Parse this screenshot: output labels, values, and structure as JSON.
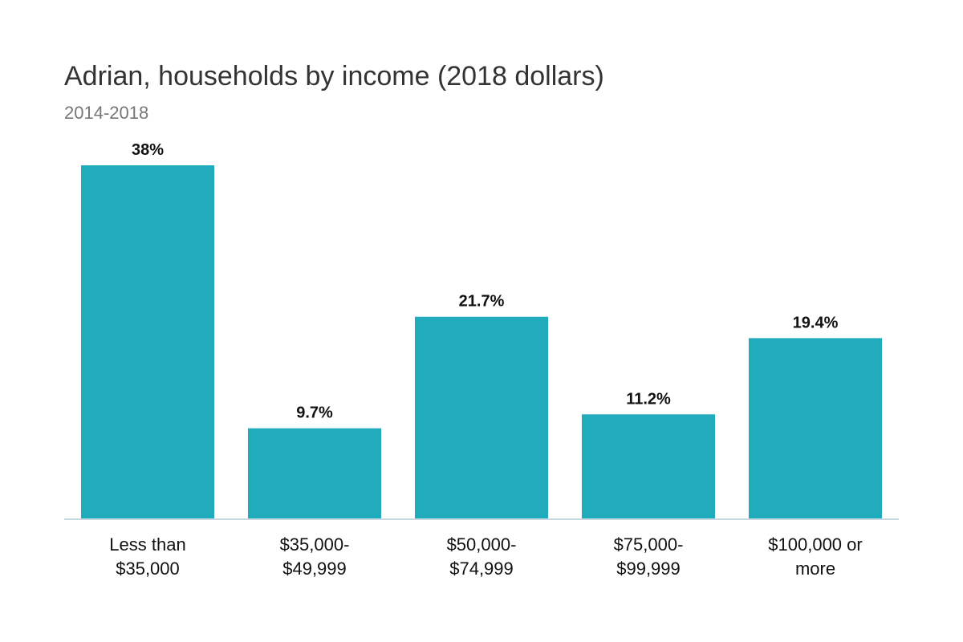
{
  "chart_data": {
    "type": "bar",
    "title": "Adrian, households by income (2018 dollars)",
    "subtitle": "2014-2018",
    "categories": [
      [
        "Less than",
        "$35,000"
      ],
      [
        "$35,000-",
        "$49,999"
      ],
      [
        "$50,000-",
        "$74,999"
      ],
      [
        "$75,000-",
        "$99,999"
      ],
      [
        "$100,000 or",
        "more"
      ]
    ],
    "values": [
      38,
      9.7,
      21.7,
      11.2,
      19.4
    ],
    "value_labels": [
      "38%",
      "9.7%",
      "21.7%",
      "11.2%",
      "19.4%"
    ],
    "unit": "%",
    "ylim": [
      0,
      38
    ],
    "grid": false,
    "legend": "none",
    "bar_color": "#20acbc",
    "baseline_color": "#c8d8e0"
  }
}
